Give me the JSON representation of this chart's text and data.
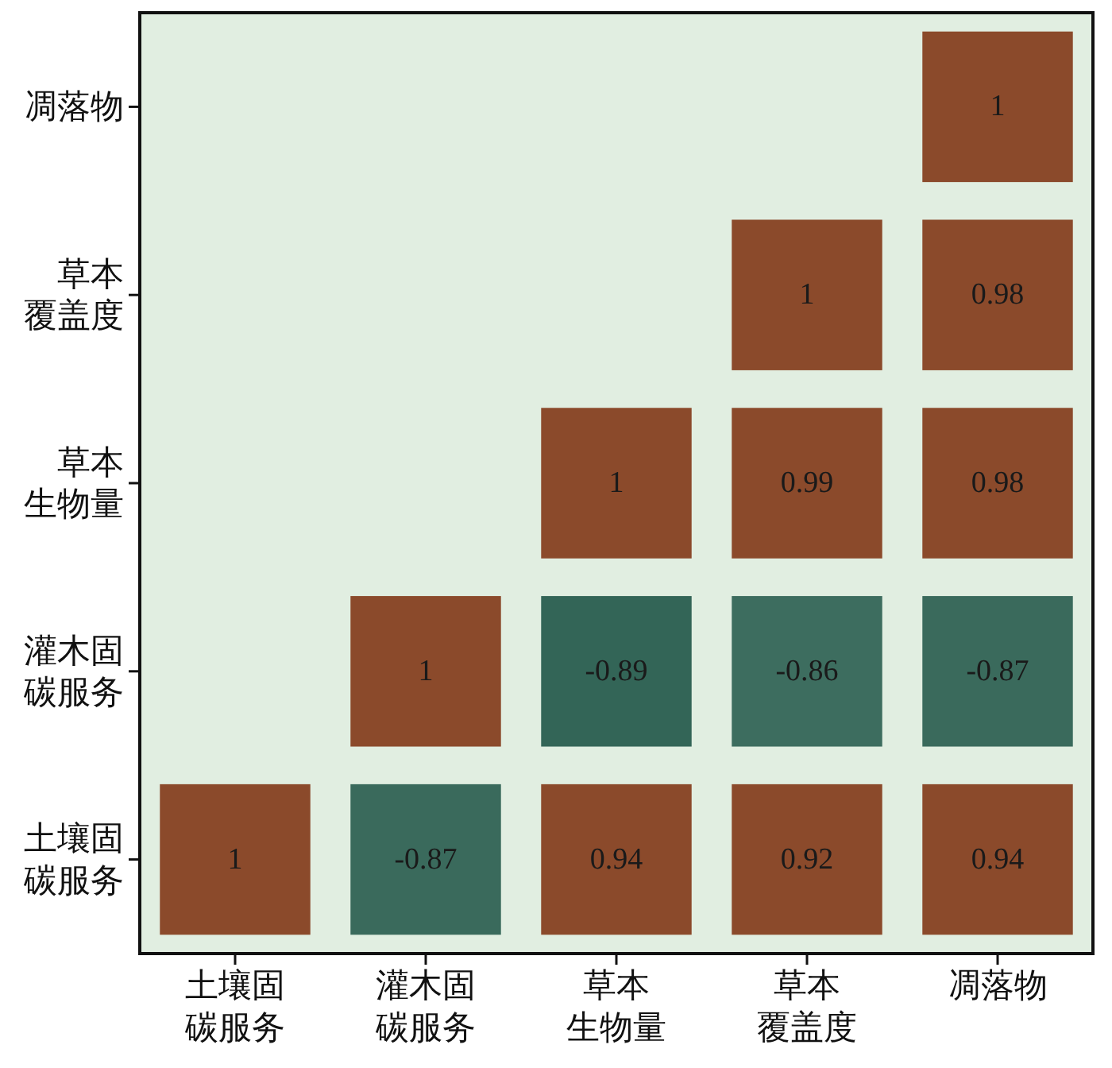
{
  "chart_data": {
    "type": "heatmap",
    "categories": [
      "土壤固碳服务",
      "灌木固碳服务",
      "草本生物量",
      "草本覆盖度",
      "凋落物"
    ],
    "y_categories": [
      "凋落物",
      "草本覆盖度",
      "草本生物量",
      "灌木固碳服务",
      "土壤固碳服务"
    ],
    "cells": [
      [
        null,
        null,
        null,
        null,
        1
      ],
      [
        null,
        null,
        null,
        1,
        0.98
      ],
      [
        null,
        null,
        1,
        0.99,
        0.98
      ],
      [
        null,
        1,
        -0.89,
        -0.86,
        -0.87
      ],
      [
        1,
        -0.87,
        0.94,
        0.92,
        0.94
      ]
    ],
    "data_labels": true
  }
}
